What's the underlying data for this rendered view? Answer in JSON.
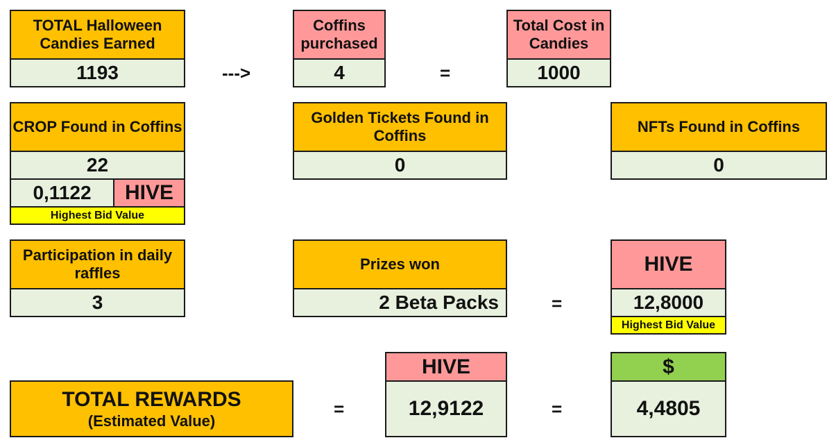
{
  "candies": {
    "label": "TOTAL Halloween Candies Earned",
    "value": "1193"
  },
  "arrow": "--->",
  "coffins": {
    "label": "Coffins purchased",
    "value": "4"
  },
  "equals": "=",
  "total_cost": {
    "label": "Total Cost in Candies",
    "value": "1000"
  },
  "crop": {
    "label": "CROP Found in Coffins",
    "value": "22",
    "hive_value": "0,1122",
    "hive_label": "HIVE",
    "bid_note": "Highest Bid Value"
  },
  "golden_tickets": {
    "label": "Golden Tickets Found in Coffins",
    "value": "0"
  },
  "nfts": {
    "label": "NFTs Found in Coffins",
    "value": "0"
  },
  "raffles": {
    "label": "Participation in daily raffles",
    "value": "3"
  },
  "prizes": {
    "label": "Prizes won",
    "count": "2",
    "item": "Beta Packs"
  },
  "prize_hive": {
    "label": "HIVE",
    "value": "12,8000",
    "bid_note": "Highest Bid Value"
  },
  "total_rewards": {
    "label": "TOTAL REWARDS",
    "sublabel": "(Estimated Value)"
  },
  "total_hive": {
    "label": "HIVE",
    "value": "12,9122"
  },
  "total_usd": {
    "label": "$",
    "value": "4,4805"
  },
  "colors": {
    "orange": "#ffc000",
    "pink": "#ff9999",
    "light_green": "#e8f0de",
    "yellow": "#ffff00",
    "green": "#92d050"
  }
}
